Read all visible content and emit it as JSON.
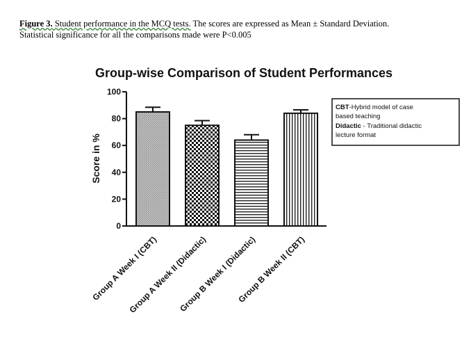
{
  "caption": {
    "lead": "Figure 3.",
    "lead_rest": " Student performance in the MCQ tests.",
    "text": " The scores are expressed as Mean ± Standard Deviation.",
    "line2": "Statistical significance for all the comparisons made were P<0.005"
  },
  "chart_data": {
    "type": "bar",
    "title": "Group-wise Comparison of Student Performances",
    "xlabel": "",
    "ylabel": "Score in %",
    "ylim": [
      0,
      100
    ],
    "yticks": [
      0,
      20,
      40,
      60,
      80,
      100
    ],
    "categories": [
      "Group A Week I (CBT)",
      "Group A Week II (Didactic)",
      "Group B Week I (Didactic)",
      "Group B Week II (CBT)"
    ],
    "values": [
      85,
      75,
      64,
      84
    ],
    "errors": [
      3.5,
      3.5,
      4,
      2.5
    ],
    "patterns": [
      "fine-dots",
      "checker",
      "horizontal-lines",
      "vertical-lines"
    ],
    "legend": {
      "position": "right",
      "lines": [
        {
          "bold": "CBT",
          "text": "-Hybrid model of case"
        },
        {
          "bold": "",
          "text": "based teaching"
        },
        {
          "bold": "Didactic",
          "text": " - Traditional didactic"
        },
        {
          "bold": "",
          "text": "lecture format"
        }
      ]
    },
    "grid": false
  }
}
